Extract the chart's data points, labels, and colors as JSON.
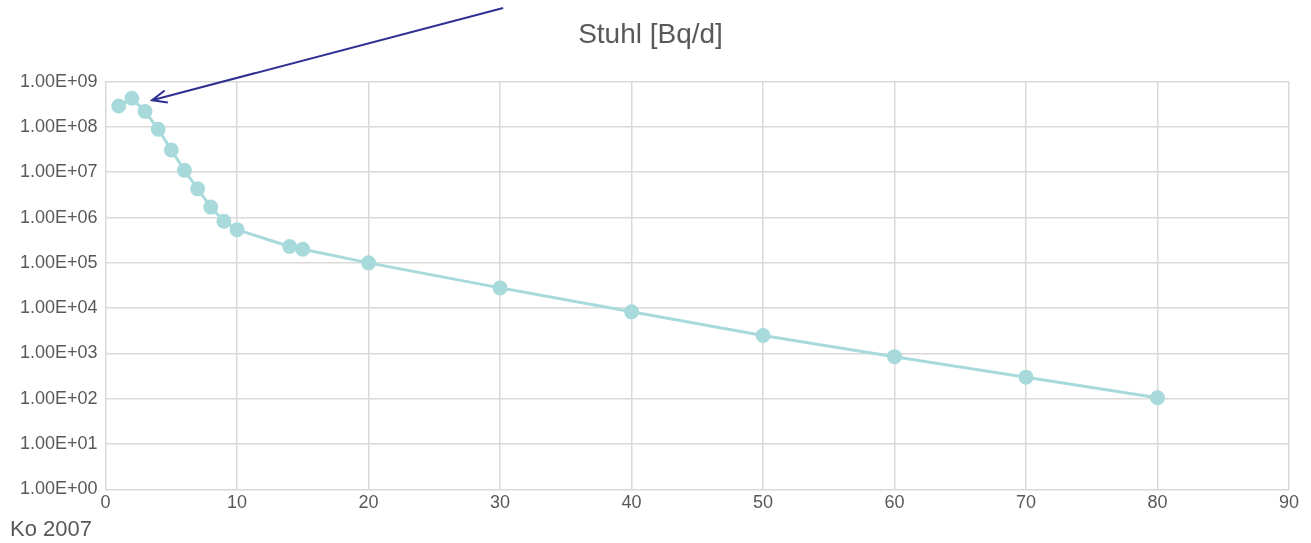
{
  "chart_data": {
    "type": "line",
    "title": "Stuhl [Bq/d]",
    "annotations": [
      "Ko 2007"
    ],
    "x": [
      1,
      2,
      3,
      4,
      5,
      6,
      7,
      8,
      9,
      10,
      14,
      15,
      20,
      30,
      40,
      50,
      60,
      70,
      80
    ],
    "series": [
      {
        "color": "#a8dadc",
        "values": [
          290000000,
          430000000,
          220000000,
          89000000,
          31000000,
          11000000,
          4300000,
          1700000,
          830000,
          540000,
          230000,
          200000,
          100000,
          28000,
          8300,
          2500,
          850,
          300,
          105
        ]
      }
    ],
    "xlim": [
      0,
      90
    ],
    "xticks": [
      0,
      10,
      20,
      30,
      40,
      50,
      60,
      70,
      80,
      90
    ],
    "ylim": [
      1,
      1000000000
    ],
    "yticks": [
      {
        "value": 1,
        "label": "1.00E+00"
      },
      {
        "value": 10,
        "label": "1.00E+01"
      },
      {
        "value": 100,
        "label": "1.00E+02"
      },
      {
        "value": 1000,
        "label": "1.00E+03"
      },
      {
        "value": 10000,
        "label": "1.00E+04"
      },
      {
        "value": 100000,
        "label": "1.00E+05"
      },
      {
        "value": 1000000,
        "label": "1.00E+06"
      },
      {
        "value": 10000000,
        "label": "1.00E+07"
      },
      {
        "value": 100000000,
        "label": "1.00E+08"
      },
      {
        "value": 1000000000,
        "label": "1.00E+09"
      }
    ],
    "log": "y",
    "grid": true,
    "legend": false,
    "marker": "circle",
    "line_style": "solid"
  }
}
